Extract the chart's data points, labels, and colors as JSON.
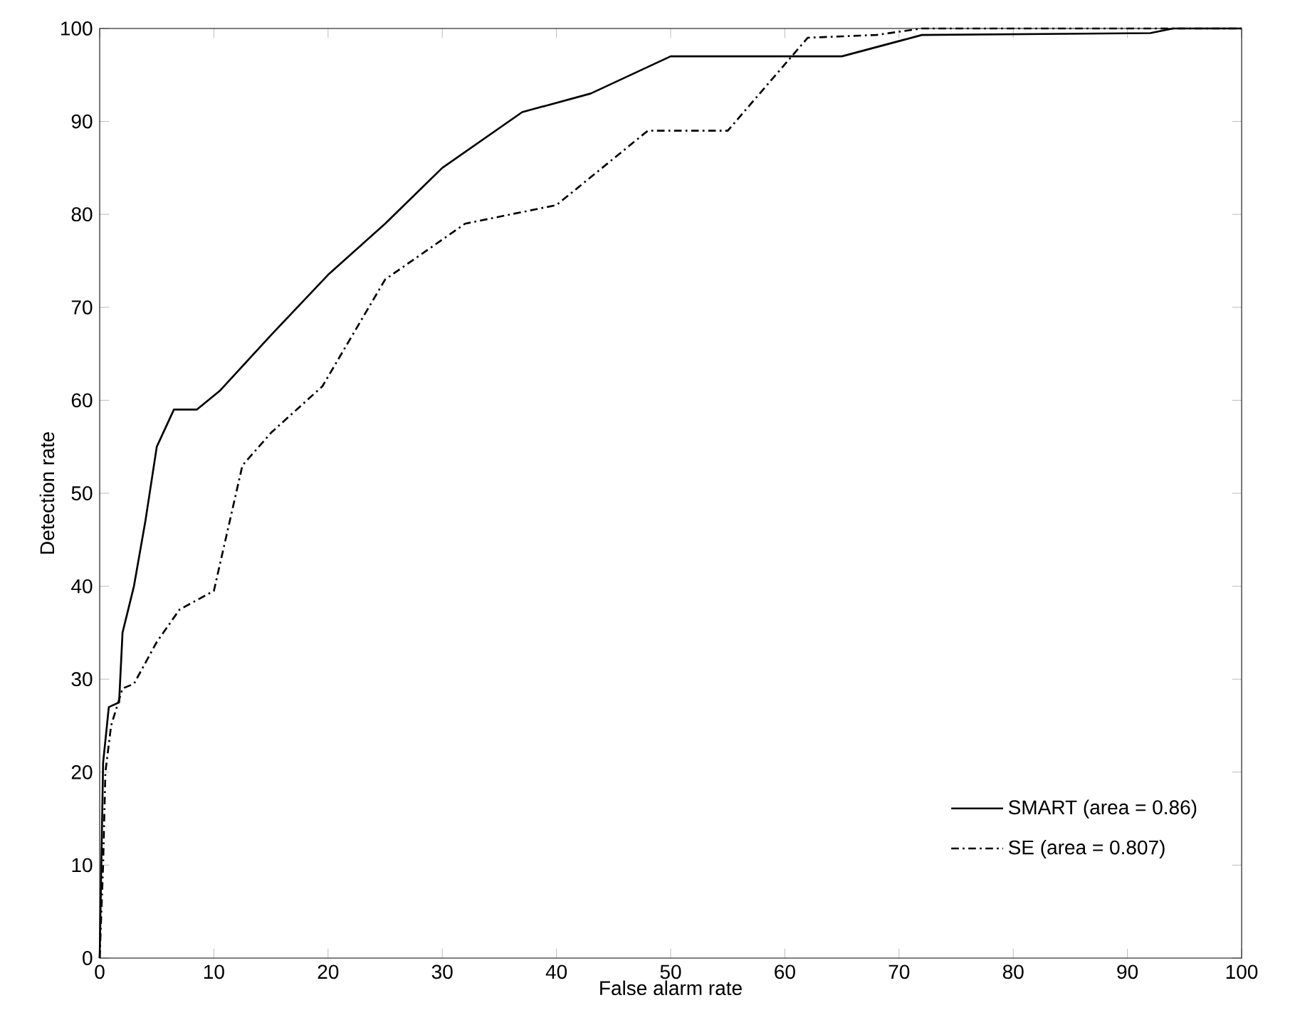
{
  "chart_data": {
    "type": "line",
    "xlabel": "False alarm rate",
    "ylabel": "Detection rate",
    "xlim": [
      0,
      100
    ],
    "ylim": [
      0,
      100
    ],
    "xticks": [
      0,
      10,
      20,
      30,
      40,
      50,
      60,
      70,
      80,
      90,
      100
    ],
    "yticks": [
      0,
      10,
      20,
      30,
      40,
      50,
      60,
      70,
      80,
      90,
      100
    ],
    "grid": false,
    "legend": "bottom right",
    "marker": "none",
    "series": [
      {
        "name": "SMART    (area = 0.86)",
        "color": "#000000",
        "line_style": "solid",
        "x": [
          0,
          0.3,
          0.8,
          1.7,
          2,
          3,
          4,
          5,
          6.5,
          8.5,
          10.5,
          15,
          20,
          25,
          30,
          37,
          43,
          50,
          65,
          72,
          92,
          94,
          100
        ],
        "values": [
          0,
          21,
          27,
          27.5,
          35,
          40,
          47,
          55,
          59,
          59,
          61,
          67,
          73.5,
          79,
          85,
          91,
          93,
          97,
          97,
          99.3,
          99.5,
          100,
          100
        ]
      },
      {
        "name": "SE         (area = 0.807)",
        "color": "#000000",
        "line_style": "dashdotted",
        "x": [
          0,
          0.3,
          0.5,
          1,
          2,
          3,
          5,
          7,
          10,
          12.5,
          15,
          19.5,
          25,
          32,
          40,
          48,
          55,
          62,
          68,
          72,
          100
        ],
        "values": [
          0,
          10,
          20,
          25,
          29,
          29.5,
          34,
          37.5,
          39.5,
          53,
          56.5,
          61.5,
          73,
          79,
          81,
          89,
          89,
          99,
          99.3,
          100,
          100
        ]
      }
    ]
  }
}
